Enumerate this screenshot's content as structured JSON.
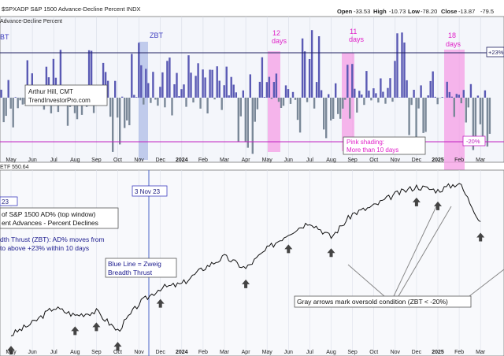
{
  "header": {
    "symbol_line": "$SPXADP S&P 1500 Advance-Decline Percent INDX",
    "open_label": "Open",
    "open_value": "-33.53",
    "high_label": "High",
    "high_value": "-10.73",
    "low_label": "Low",
    "low_value": "-78.20",
    "close_label": "Close",
    "close_value": "-13.87",
    "change_value": "-79.5",
    "series_label": "Advance-Decline Percent"
  },
  "upper_panel": {
    "zbt_label": "ZBT",
    "level_high": "+23%",
    "level_low": "-20%",
    "watermark_author": "Arthur Hill, CMT",
    "watermark_site": "TrendInvestorPro.com",
    "count_labels": [
      {
        "count": "12",
        "unit": "days"
      },
      {
        "count": "11",
        "unit": "days"
      },
      {
        "count": "18",
        "unit": "days"
      }
    ],
    "pink_note_line1": "Pink shading:",
    "pink_note_line2": "More than 10 days"
  },
  "lower_panel": {
    "series_label": "ETF 550.64",
    "zbt_date_label": "3 Nov 23",
    "zbt_date_short": "23",
    "desc_line1": "of S&P 1500 AD% (top window)",
    "desc_line2": "ent Advances - Percent Declines",
    "def_line1": "dth Thrust (ZBT): AD% moves from",
    "def_line2": "to above +23% within 10 days",
    "blue_note_line1": "Blue Line = Zweig",
    "blue_note_line2": "Breadth Thrust",
    "gray_note": "Gray arrows mark oversold condition (ZBT < -20%)"
  },
  "axis": {
    "months": [
      "May",
      "Jun",
      "Jul",
      "Aug",
      "Sep",
      "Oct",
      "Nov",
      "Dec",
      "2024",
      "Feb",
      "Mar",
      "Apr",
      "May",
      "Jun",
      "Jul",
      "Aug",
      "Sep",
      "Oct",
      "Nov",
      "Dec",
      "2025",
      "Feb",
      "Mar"
    ]
  },
  "colors": {
    "positive_bar": "#5a5ab4",
    "negative_bar": "#7a8898",
    "pink_shade": "#f59ee6",
    "blue_shade": "#a9b9e6",
    "zbt_text": "#4040c0",
    "pink_text": "#e020c8",
    "price_line": "#111111",
    "upper_line": "#202060",
    "lower_line": "#c020c0",
    "arrow": "#444444"
  },
  "chart_data": [
    {
      "type": "bar",
      "title": "Advance-Decline Percent",
      "x": [
        "2023-05",
        "2023-06",
        "2023-07",
        "2023-08",
        "2023-09",
        "2023-10",
        "2023-11",
        "2023-12",
        "2024-01",
        "2024-02",
        "2024-03",
        "2024-04",
        "2024-05",
        "2024-06",
        "2024-07",
        "2024-08",
        "2024-09",
        "2024-10",
        "2024-11",
        "2024-12",
        "2025-01",
        "2025-02",
        "2025-03"
      ],
      "values": [
        -30,
        25,
        60,
        -25,
        40,
        -45,
        70,
        55,
        50,
        30,
        25,
        -60,
        45,
        -20,
        75,
        -40,
        45,
        25,
        60,
        -50,
        30,
        -20,
        -60
      ],
      "reference_lines": [
        23,
        -20
      ],
      "ylim": [
        -80,
        80
      ],
      "shaded_windows": [
        {
          "label": "12 days",
          "period": "2024-05"
        },
        {
          "label": "11 days",
          "period": "2024-08"
        },
        {
          "label": "18 days",
          "period": "2025-01"
        }
      ],
      "zbt_signals": [
        "2023-05",
        "2023-11-03"
      ]
    },
    {
      "type": "line",
      "title": "ETF 550.64",
      "x": [
        "2023-05",
        "2023-06",
        "2023-07",
        "2023-08",
        "2023-09",
        "2023-10",
        "2023-11",
        "2023-12",
        "2024-01",
        "2024-02",
        "2024-03",
        "2024-04",
        "2024-05",
        "2024-06",
        "2024-07",
        "2024-08",
        "2024-09",
        "2024-10",
        "2024-11",
        "2024-12",
        "2025-01",
        "2025-02",
        "2025-03"
      ],
      "values": [
        415,
        430,
        450,
        440,
        445,
        420,
        455,
        475,
        480,
        500,
        515,
        500,
        525,
        545,
        560,
        540,
        570,
        580,
        595,
        605,
        600,
        610,
        560
      ],
      "oversold_arrows": [
        "2023-05",
        "2023-08",
        "2023-09",
        "2023-10",
        "2023-12",
        "2024-04",
        "2024-06",
        "2024-08",
        "2024-12",
        "2025-01",
        "2025-03"
      ]
    }
  ]
}
